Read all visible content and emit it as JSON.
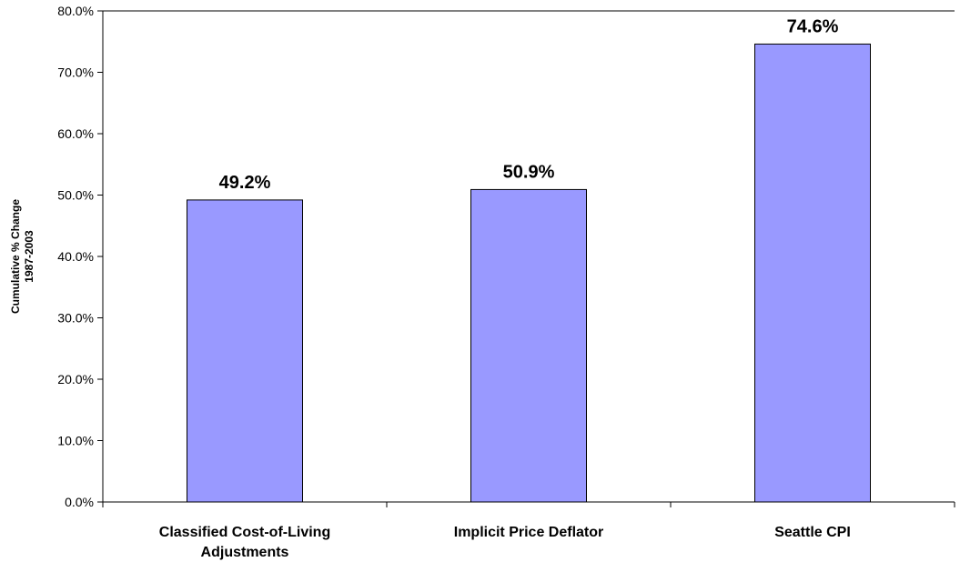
{
  "chart_data": {
    "type": "bar",
    "categories": [
      [
        "Classified Cost-of-Living",
        "Adjustments"
      ],
      [
        "Implicit Price Deflator"
      ],
      [
        "Seattle CPI"
      ]
    ],
    "values": [
      49.2,
      50.9,
      74.6
    ],
    "data_labels": [
      "49.2%",
      "50.9%",
      "74.6%"
    ],
    "ylabel": [
      "Cumulative % Change",
      "1987-2003"
    ],
    "xlabel": "",
    "title": "",
    "ylim": [
      0,
      80
    ],
    "yticks": [
      0,
      10,
      20,
      30,
      40,
      50,
      60,
      70,
      80
    ],
    "ytick_labels": [
      "0.0%",
      "10.0%",
      "20.0%",
      "30.0%",
      "40.0%",
      "50.0%",
      "60.0%",
      "70.0%",
      "80.0%"
    ],
    "grid": false,
    "legend": "none",
    "bar_color": "#9999ff",
    "bar_edge_color": "#000000"
  }
}
